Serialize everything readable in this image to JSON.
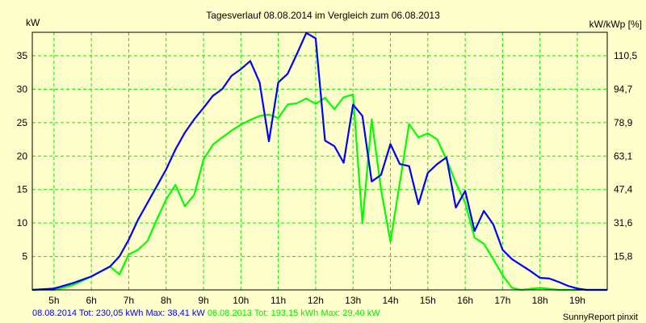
{
  "chart_data": {
    "type": "line",
    "title": "Tagesverlauf 08.08.2014 im Vergleich zum 06.08.2013",
    "ylabel": "kW",
    "ylabel_right": "kW/kWp [%]",
    "xlim": [
      4.42,
      19.8
    ],
    "ylim": [
      0,
      38.5
    ],
    "grid": true,
    "x_ticks": [
      5,
      6,
      7,
      8,
      9,
      10,
      11,
      12,
      13,
      14,
      15,
      16,
      17,
      18,
      19
    ],
    "x_tick_labels": [
      "5h",
      "6h",
      "7h",
      "8h",
      "9h",
      "10h",
      "11h",
      "12h",
      "13h",
      "14h",
      "15h",
      "16h",
      "17h",
      "18h",
      "19h"
    ],
    "y_ticks": [
      5,
      10,
      15,
      20,
      25,
      30,
      35
    ],
    "y_tick_labels": [
      "5",
      "10",
      "15",
      "20",
      "25",
      "30",
      "35"
    ],
    "y_right_tick_labels": [
      "15,8",
      "31,6",
      "47,4",
      "63,1",
      "78,9",
      "94,7",
      "110,5"
    ],
    "series": [
      {
        "name": "08.08.2014",
        "color": "#0000ff",
        "x": [
          4.42,
          5,
          5.5,
          6,
          6.5,
          6.75,
          7,
          7.25,
          7.5,
          7.75,
          8,
          8.25,
          8.5,
          8.75,
          9,
          9.25,
          9.5,
          9.75,
          10,
          10.25,
          10.5,
          10.75,
          11,
          11.25,
          11.5,
          11.75,
          12,
          12.25,
          12.5,
          12.75,
          13,
          13.25,
          13.5,
          13.75,
          14,
          14.25,
          14.5,
          14.75,
          15,
          15.25,
          15.5,
          15.75,
          16,
          16.25,
          16.5,
          16.75,
          17,
          17.25,
          17.5,
          17.75,
          18,
          18.25,
          18.5,
          18.75,
          19,
          19.25,
          19.8
        ],
        "values": [
          0,
          0.2,
          1,
          2,
          3.5,
          5,
          7.5,
          10.5,
          13,
          15.5,
          18,
          21,
          23.5,
          25.5,
          27.2,
          29,
          30,
          32,
          33,
          34.2,
          31,
          22.2,
          31,
          32.3,
          35.3,
          38.4,
          37.6,
          22.3,
          21.5,
          19,
          27.7,
          26,
          16.2,
          17.2,
          21.8,
          18.8,
          18.5,
          12.8,
          17.5,
          18.8,
          19.8,
          12.3,
          14.8,
          8.8,
          11.8,
          9.8,
          6,
          4.6,
          3.7,
          2.8,
          1.8,
          1.7,
          1.2,
          0.6,
          0.2,
          0,
          0
        ]
      },
      {
        "name": "06.08.2013",
        "color": "#00ff00",
        "x": [
          4.42,
          5,
          5.5,
          6,
          6.5,
          6.75,
          7,
          7.25,
          7.5,
          7.75,
          8,
          8.25,
          8.5,
          8.75,
          9,
          9.25,
          9.5,
          9.75,
          10,
          10.25,
          10.5,
          10.75,
          11,
          11.25,
          11.5,
          11.75,
          12,
          12.25,
          12.5,
          12.75,
          13,
          13.25,
          13.5,
          13.75,
          14,
          14.25,
          14.5,
          14.75,
          15,
          15.25,
          15.5,
          15.75,
          16,
          16.25,
          16.5,
          16.75,
          17,
          17.25,
          17.5,
          18,
          18.5,
          19.8
        ],
        "values": [
          0,
          0,
          0.7,
          2,
          3.5,
          2.3,
          5.3,
          6,
          7.3,
          10.5,
          13.5,
          15.7,
          12.5,
          14.2,
          19.5,
          21.7,
          22.8,
          23.8,
          24.7,
          25.4,
          26,
          26.2,
          25.7,
          27.7,
          27.9,
          28.6,
          27.8,
          28.7,
          27,
          28.8,
          29.2,
          10,
          25.5,
          15,
          7.2,
          16,
          24.8,
          22.8,
          23.4,
          22.5,
          19.5,
          16,
          13,
          7.8,
          6.9,
          4.6,
          2.2,
          0.3,
          0,
          0.3,
          0,
          0
        ]
      }
    ],
    "legend": {
      "blue_text": "08.08.2014 Tot: 230,05 kWh Max: 38,41 kW",
      "green_text": "06.08.2013 Tot: 193,15 kWh Max: 29,40 kW",
      "placement": "bottom-left"
    }
  },
  "credit": "SunnyReport pinxit"
}
